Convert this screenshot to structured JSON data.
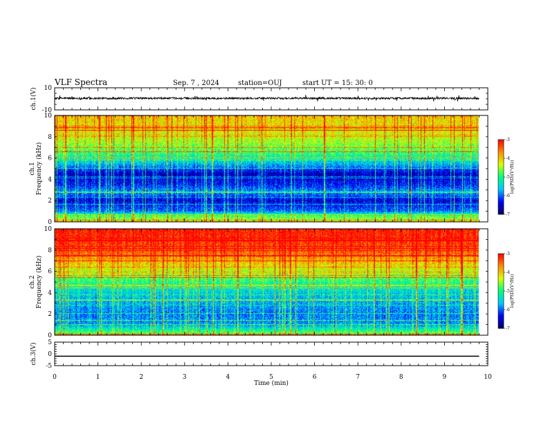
{
  "header": {
    "title": "VLF Spectra",
    "date": "Sep. 7 , 2024",
    "station": "station=OUJ",
    "start_ut": "start UT =  15: 30: 0"
  },
  "colors": {
    "background": "#ffffff",
    "axis": "#000000",
    "trace": "#000000",
    "colormap": [
      "#00005a",
      "#0000ff",
      "#00c8ff",
      "#00ff80",
      "#d8ff00",
      "#ff8c00",
      "#ff0000"
    ]
  },
  "chart_data": [
    {
      "type": "line",
      "name": "ch1-waveform",
      "ylabel": "ch.1(V)",
      "ylim": [
        -10,
        10
      ],
      "yticks": [
        "10",
        "-10"
      ],
      "xlim": [
        0,
        10
      ],
      "baseline_v": 0.5,
      "amplitude_v": 1.5,
      "trace_end_min": 9.8
    },
    {
      "type": "heatmap",
      "name": "ch1-spectrogram",
      "ylabel": "ch.1\nFrequency (kHz)",
      "ylim": [
        0,
        10
      ],
      "yticks": [
        "0",
        "2",
        "4",
        "6",
        "8",
        "10"
      ],
      "xlim": [
        0,
        10
      ],
      "data_end_min": 9.8,
      "colorbar": {
        "label": "log(PSD)(V²/Hz)",
        "range": [
          -7,
          -3
        ],
        "ticks": [
          "-3",
          "-4",
          "-5",
          "-6",
          "-7"
        ]
      },
      "profile_freq_khz": [
        0,
        0.5,
        1,
        2,
        2.8,
        3.5,
        4.5,
        5.5,
        6.5,
        7.5,
        8.5,
        10
      ],
      "profile_log_psd": [
        -4.3,
        -4.8,
        -6.0,
        -6.5,
        -5.8,
        -6.3,
        -6.6,
        -5.6,
        -4.9,
        -4.5,
        -4.2,
        -4.0
      ]
    },
    {
      "type": "heatmap",
      "name": "ch2-spectrogram",
      "ylabel": "ch.2\nFrequency (kHz)",
      "ylim": [
        0,
        10
      ],
      "yticks": [
        "0",
        "2",
        "4",
        "6",
        "8",
        "10"
      ],
      "xlim": [
        0,
        10
      ],
      "data_end_min": 9.8,
      "colorbar": {
        "label": "log(PSD)(V²/Hz)",
        "range": [
          -7,
          -3
        ],
        "ticks": [
          "-3",
          "-4",
          "-5",
          "-6",
          "-7"
        ]
      },
      "profile_freq_khz": [
        0,
        0.5,
        1,
        2,
        3,
        4,
        5,
        6,
        7,
        8,
        9,
        10
      ],
      "profile_log_psd": [
        -4.5,
        -5.2,
        -5.8,
        -5.9,
        -5.7,
        -5.5,
        -5.0,
        -4.4,
        -3.9,
        -3.4,
        -3.2,
        -3.1
      ]
    },
    {
      "type": "line",
      "name": "ch3-waveform",
      "ylabel": "ch.3(V)",
      "ylim": [
        -5,
        5
      ],
      "yticks": [
        "5",
        "0",
        "-5"
      ],
      "xlim": [
        0,
        10
      ],
      "level_v": -1,
      "trace_end_min": 9.8
    }
  ],
  "x_axis": {
    "label": "Time (min)",
    "ticks": [
      "0",
      "1",
      "2",
      "3",
      "4",
      "5",
      "6",
      "7",
      "8",
      "9",
      "10"
    ]
  }
}
